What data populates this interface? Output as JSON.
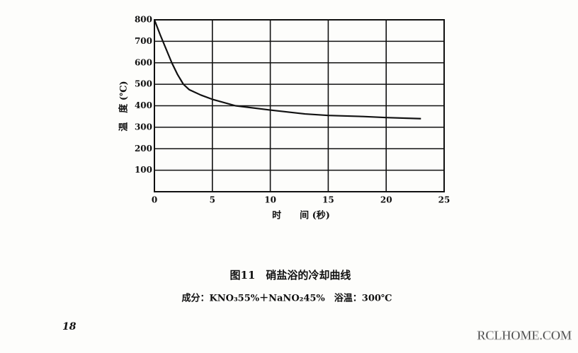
{
  "chart_data": {
    "type": "line",
    "title": "图11　硝盐浴的冷却曲线",
    "subtitle": "成分：KNO₃55%＋NaNO₂45%　浴温：300℃",
    "x_label": "时　　间 (秒)",
    "y_label": "温　度 (℃)",
    "page_number": "18",
    "watermark": "RCLHOME.COM",
    "x": [
      0,
      0.5,
      1,
      1.5,
      2,
      2.5,
      3,
      4,
      5,
      7,
      10,
      13,
      15,
      18,
      20,
      23
    ],
    "series": [
      {
        "name": "冷却曲线",
        "color": "#111111",
        "values": [
          800,
          730,
          665,
          600,
          545,
          500,
          475,
          450,
          430,
          400,
          380,
          362,
          355,
          350,
          345,
          340
        ]
      }
    ],
    "xlim": [
      0,
      25
    ],
    "xticks": [
      0,
      5,
      10,
      15,
      20,
      25
    ],
    "ylim": [
      0,
      800
    ],
    "yticks": [
      100,
      200,
      300,
      400,
      500,
      600,
      700,
      800
    ],
    "grid": true
  }
}
